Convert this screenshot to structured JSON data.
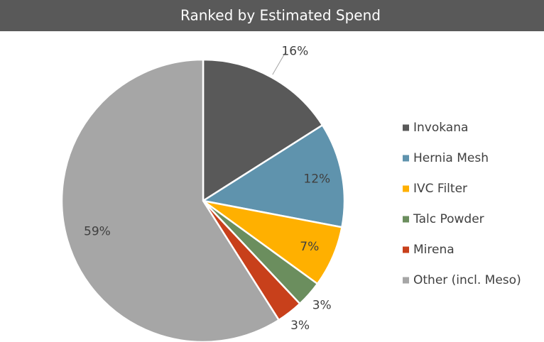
{
  "chart_data": {
    "type": "pie",
    "title": "Ranked by Estimated Spend",
    "categories": [
      "Invokana",
      "Hernia Mesh",
      "IVC Filter",
      "Talc Powder",
      "Mirena",
      "Other (incl. Meso)"
    ],
    "values": [
      16,
      12,
      7,
      3,
      3,
      59
    ],
    "value_labels": [
      "16%",
      "12%",
      "7%",
      "3%",
      "3%",
      "59%"
    ],
    "colors": [
      "#595959",
      "#5f93ad",
      "#ffb000",
      "#6b8e5e",
      "#c8401b",
      "#a6a6a6"
    ],
    "legend": "right"
  }
}
